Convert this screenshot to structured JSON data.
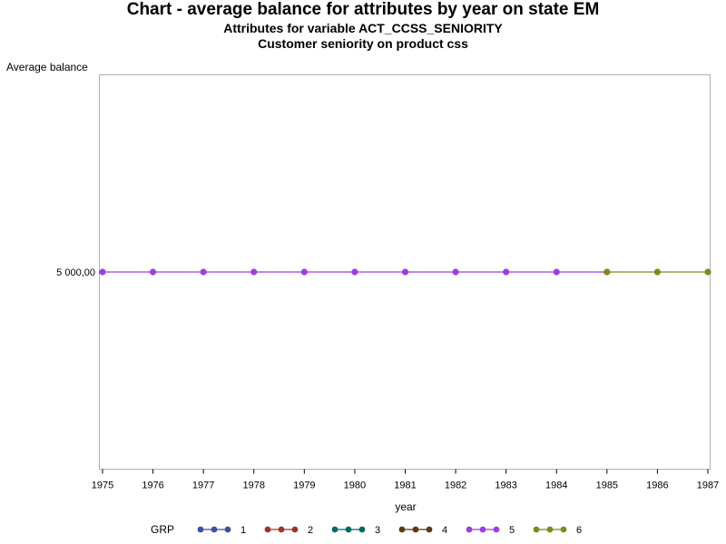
{
  "chart_data": {
    "type": "line",
    "title": "Chart - average balance for attributes by year on state EM",
    "subtitles": [
      "Attributes for variable ACT_CCSS_SENIORITY",
      "Customer seniority on product css"
    ],
    "xlabel": "year",
    "ylabel": "Average balance",
    "x": [
      1975,
      1976,
      1977,
      1978,
      1979,
      1980,
      1981,
      1982,
      1983,
      1984,
      1985,
      1986,
      1987
    ],
    "y_tick_values": [
      5000
    ],
    "y_tick_labels": [
      "5 000,00"
    ],
    "ylim": [
      4000,
      6000
    ],
    "xlim": [
      1975,
      1987
    ],
    "grid": false,
    "legend": {
      "title": "GRP",
      "placement": "bottom"
    },
    "series": [
      {
        "name": "1",
        "color": "#3f4fa0",
        "points": []
      },
      {
        "name": "2",
        "color": "#a0342c",
        "points": []
      },
      {
        "name": "3",
        "color": "#006b63",
        "points": []
      },
      {
        "name": "4",
        "color": "#5a3b10",
        "points": []
      },
      {
        "name": "5",
        "color": "#9b3fe0",
        "points": [
          [
            1975,
            5000
          ],
          [
            1976,
            5000
          ],
          [
            1977,
            5000
          ],
          [
            1978,
            5000
          ],
          [
            1979,
            5000
          ],
          [
            1980,
            5000
          ],
          [
            1981,
            5000
          ],
          [
            1982,
            5000
          ],
          [
            1983,
            5000
          ],
          [
            1984,
            5000
          ],
          [
            1985,
            5000
          ]
        ]
      },
      {
        "name": "6",
        "color": "#7f8a1a",
        "points": [
          [
            1985,
            5000
          ],
          [
            1986,
            5000
          ],
          [
            1987,
            5000
          ]
        ]
      }
    ]
  }
}
